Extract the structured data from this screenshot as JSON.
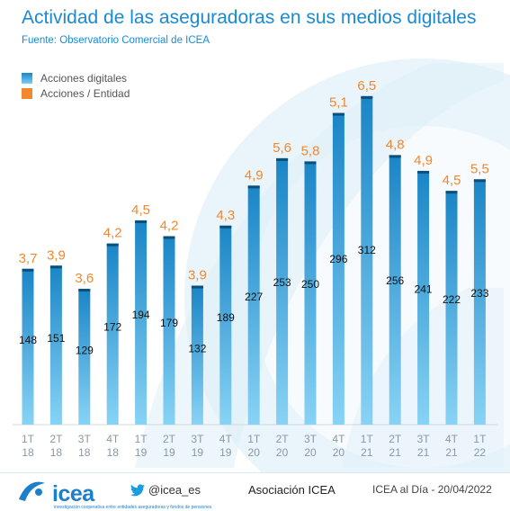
{
  "header": {
    "title": "Actividad de las aseguradoras en sus medios digitales",
    "subtitle": "Fuente: Observatorio Comercial de ICEA"
  },
  "chart_data": {
    "type": "bar",
    "categories": [
      "1T 18",
      "2T 18",
      "3T 18",
      "4T 18",
      "1T 19",
      "2T 19",
      "3T 19",
      "4T 19",
      "1T 20",
      "2T 20",
      "3T 20",
      "4T 20",
      "1T 21",
      "2T 21",
      "3T 21",
      "4T 21",
      "1T 22"
    ],
    "series": [
      {
        "name": "Acciones digitales",
        "values": [
          148,
          151,
          129,
          172,
          194,
          179,
          132,
          189,
          227,
          253,
          250,
          296,
          312,
          256,
          241,
          222,
          233
        ],
        "color": "#2a9be0"
      },
      {
        "name": "Acciones / Entidad",
        "values": [
          "3,7",
          "3,9",
          "3,6",
          "4,2",
          "4,5",
          "4,2",
          "3,9",
          "4,3",
          "4,9",
          "5,6",
          "5,8",
          "5,1",
          "6,5",
          "4,8",
          "4,9",
          "4,5",
          "5,5"
        ],
        "color": "#f2872e"
      }
    ],
    "ylim": [
      0,
      364
    ],
    "legend_position": "top-left",
    "grid": false
  },
  "footer": {
    "logo_text": "icea",
    "logo_tagline": "investigación cooperativa entre entidades aseguradoras y fondos de pensiones",
    "twitter": "@icea_es",
    "association": "Asociación ICEA",
    "date_line": "ICEA al Día - 20/04/2022"
  },
  "colors": {
    "accent": "#1a8ad3",
    "bar_top": "#1a85c6",
    "bar_bottom": "#88d3f5",
    "orange": "#f2872e"
  },
  "icons": {
    "twitter": "twitter-bird-icon",
    "logo": "icea-logo-icon"
  }
}
